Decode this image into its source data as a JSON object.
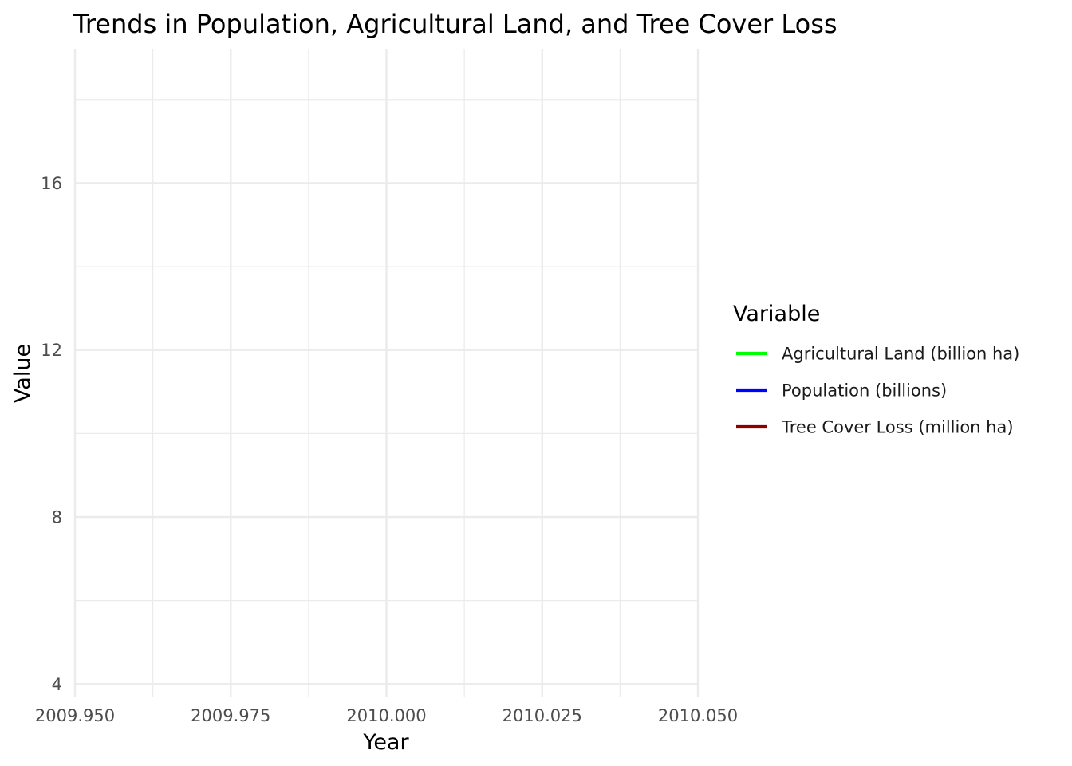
{
  "chart_data": {
    "type": "line",
    "title": "Trends in Population, Agricultural Land, and Tree Cover Loss",
    "xlabel": "Year",
    "ylabel": "Value",
    "xlim": [
      2009.95,
      2010.05
    ],
    "ylim": [
      3.7,
      19.2
    ],
    "x_ticks": [
      2009.95,
      2009.975,
      2010.0,
      2010.025,
      2010.05
    ],
    "x_tick_labels": [
      "2009.950",
      "2009.975",
      "2010.000",
      "2010.025",
      "2010.050"
    ],
    "x_minor_ticks": [
      2009.9625,
      2009.9875,
      2010.0125,
      2010.0375
    ],
    "y_ticks": [
      4,
      8,
      12,
      16
    ],
    "y_tick_labels": [
      "4",
      "8",
      "12",
      "16"
    ],
    "y_minor_ticks": [
      6,
      10,
      14,
      18
    ],
    "grid": true,
    "legend": {
      "title": "Variable",
      "position": "right"
    },
    "series": [
      {
        "name": "Agricultural Land (billion ha)",
        "color": "#00ff00",
        "x": [],
        "y": []
      },
      {
        "name": "Population (billions)",
        "color": "#0000ff",
        "x": [],
        "y": []
      },
      {
        "name": "Tree Cover Loss (million ha)",
        "color": "#8b0000",
        "x": [],
        "y": []
      }
    ]
  }
}
